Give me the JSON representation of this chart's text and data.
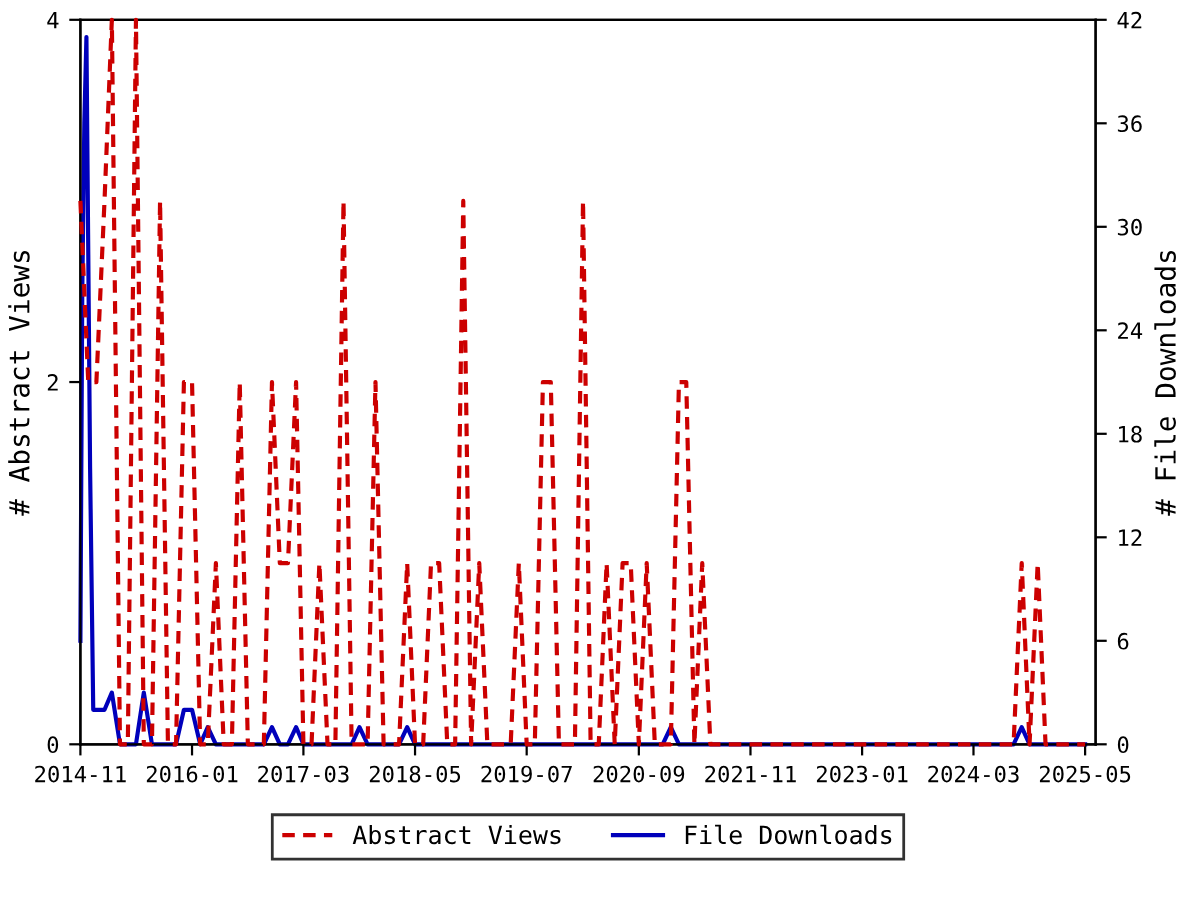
{
  "chart_data": {
    "type": "line",
    "ylabel": "# Abstract Views",
    "y2label": "# File Downloads",
    "xlim": [
      "2014-11",
      "2025-06-10"
    ],
    "xticks": [
      "2014-11",
      "2016-01",
      "2017-03",
      "2018-05",
      "2019-07",
      "2020-09",
      "2021-11",
      "2023-01",
      "2024-03",
      "2025-05"
    ],
    "ylim": [
      0,
      4
    ],
    "yticks": [
      0,
      2,
      4
    ],
    "y2lim": [
      0,
      42
    ],
    "y2ticks": [
      0,
      6,
      12,
      18,
      24,
      30,
      36,
      42
    ],
    "grid": false,
    "legend": "bottom",
    "marker": "none",
    "series": [
      {
        "name": "Abstract Views",
        "color": "#cc0000",
        "line_style": "dashed",
        "axis": "y",
        "x": [
          "2014-11",
          "2014-12",
          "2015-01",
          "2015-02",
          "2015-03",
          "2015-04",
          "2015-05",
          "2015-06",
          "2015-07",
          "2015-08",
          "2015-09",
          "2015-10",
          "2015-11",
          "2015-12",
          "2016-01",
          "2016-02",
          "2016-03",
          "2016-04",
          "2016-05",
          "2016-06",
          "2016-07",
          "2016-08",
          "2016-09",
          "2016-10",
          "2016-11",
          "2016-12",
          "2017-01",
          "2017-02",
          "2017-03",
          "2017-04",
          "2017-05",
          "2017-06",
          "2017-07",
          "2017-08",
          "2017-09",
          "2017-10",
          "2017-11",
          "2017-12",
          "2018-01",
          "2018-02",
          "2018-03",
          "2018-04",
          "2018-05",
          "2018-06",
          "2018-07",
          "2018-08",
          "2018-09",
          "2018-10",
          "2018-11",
          "2018-12",
          "2019-01",
          "2019-02",
          "2019-03",
          "2019-04",
          "2019-05",
          "2019-06",
          "2019-07",
          "2019-08",
          "2019-09",
          "2019-10",
          "2019-11",
          "2019-12",
          "2020-01",
          "2020-02",
          "2020-03",
          "2020-04",
          "2020-05",
          "2020-06",
          "2020-07",
          "2020-08",
          "2020-09",
          "2020-10",
          "2020-11",
          "2020-12",
          "2021-01",
          "2021-02",
          "2021-03",
          "2021-04",
          "2021-05",
          "2021-06",
          "2021-07",
          "2021-08",
          "2021-09",
          "2021-10",
          "2021-11",
          "2021-12",
          "2022-01",
          "2022-02",
          "2022-03",
          "2022-04",
          "2022-05",
          "2022-06",
          "2022-07",
          "2022-08",
          "2022-09",
          "2022-10",
          "2022-11",
          "2022-12",
          "2023-01",
          "2023-02",
          "2023-03",
          "2023-04",
          "2023-05",
          "2023-06",
          "2023-07",
          "2023-08",
          "2023-09",
          "2023-10",
          "2023-11",
          "2023-12",
          "2024-01",
          "2024-02",
          "2024-03",
          "2024-04",
          "2024-05",
          "2024-06",
          "2024-07",
          "2024-08",
          "2024-09",
          "2024-10",
          "2024-11",
          "2024-12",
          "2025-01",
          "2025-02",
          "2025-03",
          "2025-04",
          "2025-05"
        ],
        "values": [
          3,
          2,
          2,
          3,
          4,
          0,
          0,
          4,
          0,
          0,
          3,
          0,
          0,
          2,
          2,
          0,
          0,
          1,
          0,
          0,
          2,
          0,
          0,
          0,
          2,
          1,
          1,
          2,
          0,
          0,
          1,
          0,
          0,
          3,
          0,
          0,
          0,
          2,
          0,
          0,
          0,
          1,
          0,
          0,
          1,
          1,
          0,
          0,
          3,
          0,
          1,
          0,
          0,
          0,
          0,
          1,
          0,
          0,
          2,
          2,
          0,
          0,
          0,
          3,
          0,
          0,
          1,
          0,
          1,
          1,
          0,
          1,
          0,
          0,
          0,
          2,
          2,
          0,
          1,
          0,
          0,
          0,
          0,
          0,
          0,
          0,
          0,
          0,
          0,
          0,
          0,
          0,
          0,
          0,
          0,
          0,
          0,
          0,
          0,
          0,
          0,
          0,
          0,
          0,
          0,
          0,
          0,
          0,
          0,
          0,
          0,
          0,
          0,
          0,
          0,
          0,
          0,
          0,
          1,
          0,
          1,
          0,
          0,
          0,
          0,
          0,
          0
        ]
      },
      {
        "name": "File Downloads",
        "color": "#0000bb",
        "line_style": "solid",
        "axis": "y2",
        "x": [
          "2014-11-01",
          "2014-11-08",
          "2014-11-16",
          "2014-11-24",
          "2014-12-08",
          "2014-12-20",
          "2015-02",
          "2015-03",
          "2015-04",
          "2015-06",
          "2015-07",
          "2015-08",
          "2015-11",
          "2015-12",
          "2016-01",
          "2016-02",
          "2016-03",
          "2016-04",
          "2016-10",
          "2016-11",
          "2016-12",
          "2017-01",
          "2017-02",
          "2017-03",
          "2017-09",
          "2017-10",
          "2017-11",
          "2018-03",
          "2018-04",
          "2018-05",
          "2020-12",
          "2021-01",
          "2021-02",
          "2024-08",
          "2024-09",
          "2024-10",
          "2025-05"
        ],
        "values": [
          6,
          26,
          36,
          41,
          16,
          2,
          2,
          3,
          0,
          0,
          3,
          0,
          0,
          2,
          2,
          0,
          1,
          0,
          0,
          1,
          0,
          0,
          1,
          0,
          0,
          1,
          0,
          0,
          1,
          0,
          0,
          1,
          0,
          0,
          1,
          0,
          0
        ]
      }
    ]
  }
}
